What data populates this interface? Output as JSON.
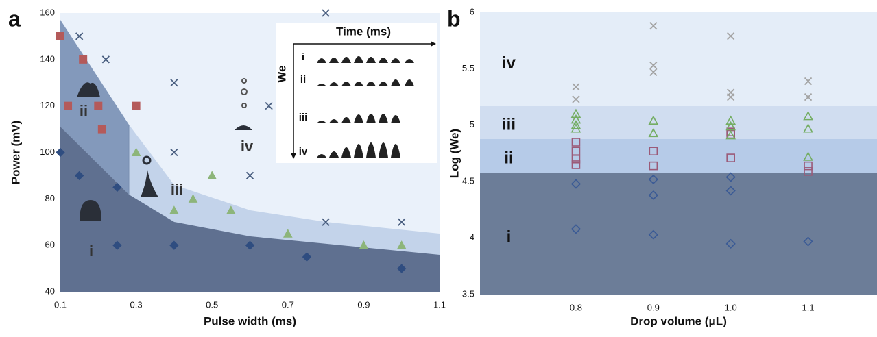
{
  "chart_data": [
    {
      "type": "scatter",
      "panel": "a",
      "xlabel": "Pulse width (ms)",
      "ylabel": "Power (mV)",
      "xlim": [
        0.1,
        1.1
      ],
      "ylim": [
        40,
        160
      ],
      "xticks": [
        0.1,
        0.3,
        0.5,
        0.7,
        0.9,
        1.1
      ],
      "yticks": [
        40,
        60,
        80,
        100,
        120,
        140,
        160
      ],
      "annotations": [
        "i",
        "ii",
        "iii",
        "iv"
      ],
      "inset": {
        "title": "Time (ms)",
        "ylabel": "We",
        "rows": [
          "i",
          "ii",
          "iii",
          "iv"
        ]
      },
      "series": [
        {
          "marker": "diamond",
          "filled": true,
          "color": "#2f4d80",
          "x": [
            0.1,
            0.15,
            0.25,
            0.25,
            0.4,
            0.6,
            0.75,
            1.0
          ],
          "values": [
            100,
            90,
            85,
            60,
            60,
            60,
            55,
            50
          ]
        },
        {
          "marker": "square",
          "filled": true,
          "color": "#b45a5a",
          "x": [
            0.1,
            0.12,
            0.16,
            0.2,
            0.21,
            0.3
          ],
          "values": [
            150,
            120,
            140,
            120,
            110,
            120
          ]
        },
        {
          "marker": "triangle",
          "filled": true,
          "color": "#8db57a",
          "x": [
            0.3,
            0.4,
            0.45,
            0.5,
            0.55,
            0.7,
            0.9,
            1.0
          ],
          "values": [
            100,
            75,
            80,
            90,
            75,
            65,
            60,
            60
          ]
        },
        {
          "marker": "cross",
          "filled": false,
          "color": "#4a5f80",
          "x": [
            0.15,
            0.22,
            0.4,
            0.4,
            0.6,
            0.65,
            0.8,
            0.8,
            1.0
          ],
          "values": [
            150,
            140,
            130,
            100,
            90,
            120,
            160,
            70,
            70
          ]
        }
      ]
    },
    {
      "type": "scatter",
      "panel": "b",
      "xlabel": "Drop volume (μL)",
      "ylabel": "Log (We)",
      "xlim": [
        0.676,
        1.189
      ],
      "ylim": [
        3.5,
        6
      ],
      "xticks": [
        0.8,
        0.9,
        {
          "value": 1.0,
          "label": "1.0"
        },
        1.1
      ],
      "yticks": [
        3.5,
        4,
        4.5,
        5,
        5.5,
        6
      ],
      "annotations": [
        "iv",
        "iii",
        "ii",
        "i"
      ],
      "series": [
        {
          "marker": "diamond",
          "filled": false,
          "color": "#3a5a95",
          "x": [
            0.8,
            0.8,
            0.9,
            0.9,
            0.9,
            1.0,
            1.0,
            1.0,
            1.1
          ],
          "values": [
            4.48,
            4.08,
            4.52,
            4.38,
            4.03,
            4.54,
            4.42,
            3.95,
            3.97
          ]
        },
        {
          "marker": "square",
          "filled": false,
          "color": "#9b5a78",
          "x": [
            0.8,
            0.8,
            0.8,
            0.8,
            0.9,
            0.9,
            1.0,
            1.0,
            1.0,
            1.1,
            1.1
          ],
          "values": [
            4.85,
            4.77,
            4.7,
            4.65,
            4.77,
            4.64,
            4.94,
            4.92,
            4.71,
            4.64,
            4.59
          ]
        },
        {
          "marker": "triangle",
          "filled": false,
          "color": "#74ad63",
          "x": [
            0.8,
            0.8,
            0.8,
            0.8,
            0.9,
            0.9,
            1.0,
            1.0,
            1.0,
            1.1,
            1.1,
            1.1
          ],
          "values": [
            5.1,
            5.05,
            5.0,
            4.97,
            5.04,
            4.93,
            5.04,
            4.99,
            4.91,
            5.08,
            4.97,
            4.72
          ]
        },
        {
          "marker": "cross",
          "filled": false,
          "color": "#a3a3a3",
          "x": [
            0.8,
            0.8,
            0.9,
            0.9,
            0.9,
            1.0,
            1.0,
            1.0,
            1.1,
            1.1
          ],
          "values": [
            5.34,
            5.23,
            5.88,
            5.53,
            5.47,
            5.79,
            5.29,
            5.25,
            5.39,
            5.25
          ]
        }
      ]
    }
  ]
}
